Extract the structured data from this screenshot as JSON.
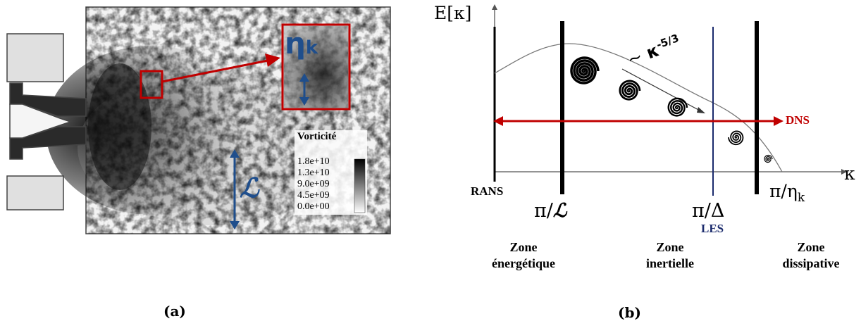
{
  "panel_a": {
    "caption": "(a)",
    "eta_label": "η",
    "eta_sub": "k",
    "scale_symbol": "ℒ",
    "legend": {
      "title": "Vorticité",
      "ticks": [
        "1.8e+10",
        "1.3e+10",
        "9.0e+09",
        "4.5e+09",
        "0.0e+00"
      ]
    },
    "colors": {
      "zoom": "#c00000",
      "arrow": "#1f4e8c"
    }
  },
  "panel_b": {
    "caption": "(b)",
    "y_axis_label": "E[κ]",
    "x_axis_label": "κ",
    "slope_tilde": "~",
    "slope_base": "κ",
    "slope_exp": "-5/3",
    "dns_label": "DNS",
    "rans_label": "RANS",
    "les_label": "LES",
    "ticks": {
      "pi_L_prefix": "π/",
      "pi_L_symbol": "ℒ",
      "pi_delta": "π/Δ",
      "pi_eta": "π/η",
      "pi_eta_sub": "k"
    },
    "zones": [
      {
        "line1": "Zone",
        "line2": "énergétique"
      },
      {
        "line1": "Zone",
        "line2": "inertielle"
      },
      {
        "line1": "Zone",
        "line2": "dissipative"
      }
    ],
    "colors": {
      "dns": "#c00000",
      "les": "#1a2a6c"
    }
  }
}
